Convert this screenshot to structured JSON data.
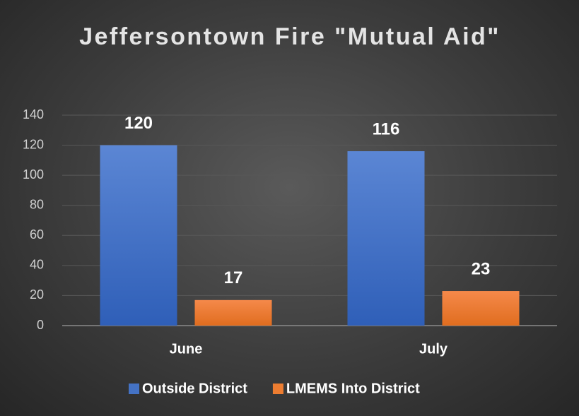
{
  "chart_data": {
    "type": "bar",
    "title": "Jeffersontown Fire \"Mutual Aid\"",
    "categories": [
      "June",
      "July"
    ],
    "series": [
      {
        "name": "Outside District",
        "color": "#4472c4",
        "values": [
          120,
          116
        ]
      },
      {
        "name": "LMEMS Into District",
        "color": "#ed7d31",
        "values": [
          17,
          23
        ]
      }
    ],
    "ylim": [
      0,
      140
    ],
    "yticks": [
      0,
      20,
      40,
      60,
      80,
      100,
      120,
      140
    ],
    "grid": true,
    "legend": "bottom"
  }
}
